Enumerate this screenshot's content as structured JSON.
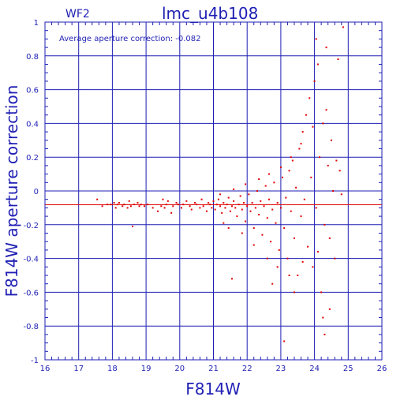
{
  "chart_data": {
    "type": "scatter",
    "title": "lmc_u4b108",
    "subtitle": "WF2",
    "xlabel": "F814W",
    "ylabel": "F814W aperture correction",
    "annotation": "Average aperture correction:  -0.082",
    "reference_line": -0.082,
    "xlim": [
      16,
      26
    ],
    "ylim": [
      -1,
      1
    ],
    "grid": true,
    "x_ticks": [
      16,
      17,
      18,
      19,
      20,
      21,
      22,
      23,
      24,
      25,
      26
    ],
    "x_tick_labels": [
      "16",
      "17",
      "18",
      "19",
      "20",
      "21",
      "22",
      "23",
      "24",
      "25",
      "26"
    ],
    "y_ticks": [
      -1,
      -0.8,
      -0.6,
      -0.4,
      -0.2,
      0,
      0.2,
      0.4,
      0.6,
      0.8,
      1
    ],
    "y_tick_labels": [
      "-1",
      "-0.8",
      "-0.6",
      "-0.4",
      "-0.2",
      "0",
      "0.2",
      "0.4",
      "0.6",
      "0.8",
      "1"
    ],
    "colors": {
      "axes": "#1f1fb4",
      "points": "#e00000",
      "reference_line": "#e00000"
    },
    "series": [
      {
        "values": [
          [
            17.55,
            -0.05
          ],
          [
            17.7,
            -0.09
          ],
          [
            17.85,
            -0.08
          ],
          [
            17.95,
            -0.08
          ],
          [
            18.05,
            -0.07
          ],
          [
            18.1,
            -0.1
          ],
          [
            18.15,
            -0.08
          ],
          [
            18.2,
            -0.07
          ],
          [
            18.3,
            -0.09
          ],
          [
            18.35,
            -0.08
          ],
          [
            18.45,
            -0.1
          ],
          [
            18.5,
            -0.06
          ],
          [
            18.55,
            -0.09
          ],
          [
            18.6,
            -0.21
          ],
          [
            18.65,
            -0.08
          ],
          [
            18.75,
            -0.07
          ],
          [
            18.8,
            -0.09
          ],
          [
            18.85,
            -0.08
          ],
          [
            18.95,
            -0.09
          ],
          [
            19.05,
            -0.08
          ],
          [
            19.2,
            -0.1
          ],
          [
            19.35,
            -0.12
          ],
          [
            19.45,
            -0.09
          ],
          [
            19.5,
            -0.05
          ],
          [
            19.55,
            -0.1
          ],
          [
            19.6,
            -0.08
          ],
          [
            19.65,
            -0.06
          ],
          [
            19.75,
            -0.13
          ],
          [
            19.8,
            -0.09
          ],
          [
            19.9,
            -0.07
          ],
          [
            19.95,
            -0.08
          ],
          [
            20.05,
            -0.1
          ],
          [
            20.1,
            -0.08
          ],
          [
            20.2,
            -0.06
          ],
          [
            20.3,
            -0.09
          ],
          [
            20.35,
            -0.11
          ],
          [
            20.45,
            -0.07
          ],
          [
            20.5,
            -0.08
          ],
          [
            20.6,
            -0.1
          ],
          [
            20.65,
            -0.05
          ],
          [
            20.7,
            -0.09
          ],
          [
            20.8,
            -0.12
          ],
          [
            20.85,
            -0.07
          ],
          [
            20.9,
            -0.08
          ],
          [
            20.95,
            -0.1
          ],
          [
            21.0,
            -0.06
          ],
          [
            21.05,
            -0.11
          ],
          [
            21.1,
            -0.08
          ],
          [
            21.15,
            -0.05
          ],
          [
            21.2,
            -0.09
          ],
          [
            21.25,
            -0.13
          ],
          [
            21.3,
            -0.07
          ],
          [
            21.35,
            -0.1
          ],
          [
            21.4,
            -0.08
          ],
          [
            21.45,
            -0.04
          ],
          [
            21.5,
            -0.12
          ],
          [
            21.55,
            -0.09
          ],
          [
            21.6,
            -0.06
          ],
          [
            21.65,
            -0.1
          ],
          [
            21.7,
            -0.15
          ],
          [
            21.75,
            -0.08
          ],
          [
            21.8,
            -0.03
          ],
          [
            21.85,
            -0.11
          ],
          [
            21.9,
            -0.07
          ],
          [
            21.95,
            -0.18
          ],
          [
            22.0,
            -0.09
          ],
          [
            22.05,
            -0.02
          ],
          [
            22.1,
            -0.12
          ],
          [
            22.15,
            -0.07
          ],
          [
            22.2,
            -0.22
          ],
          [
            22.25,
            -0.1
          ],
          [
            22.3,
            0.0
          ],
          [
            22.35,
            -0.14
          ],
          [
            22.4,
            -0.06
          ],
          [
            22.45,
            -0.26
          ],
          [
            22.5,
            -0.09
          ],
          [
            22.55,
            0.03
          ],
          [
            22.6,
            -0.16
          ],
          [
            22.65,
            -0.05
          ],
          [
            22.7,
            -0.3
          ],
          [
            22.75,
            -0.11
          ],
          [
            22.8,
            0.05
          ],
          [
            22.85,
            -0.19
          ],
          [
            22.9,
            -0.07
          ],
          [
            22.95,
            -0.35
          ],
          [
            23.0,
            -0.1
          ],
          [
            23.05,
            0.08
          ],
          [
            23.1,
            -0.22
          ],
          [
            23.15,
            -0.04
          ],
          [
            23.2,
            -0.4
          ],
          [
            23.25,
            0.12
          ],
          [
            23.3,
            -0.12
          ],
          [
            23.35,
            0.18
          ],
          [
            23.4,
            -0.28
          ],
          [
            23.45,
            0.02
          ],
          [
            23.5,
            -0.5
          ],
          [
            23.55,
            0.25
          ],
          [
            23.6,
            -0.15
          ],
          [
            23.65,
            0.35
          ],
          [
            23.7,
            -0.05
          ],
          [
            23.75,
            0.45
          ],
          [
            23.8,
            -0.33
          ],
          [
            23.85,
            0.55
          ],
          [
            23.9,
            0.08
          ],
          [
            23.95,
            -0.45
          ],
          [
            24.0,
            0.65
          ],
          [
            24.05,
            -0.1
          ],
          [
            24.1,
            0.75
          ],
          [
            24.15,
            0.2
          ],
          [
            24.2,
            -0.6
          ],
          [
            24.25,
            0.4
          ],
          [
            24.3,
            -0.2
          ],
          [
            24.35,
            0.85
          ],
          [
            24.4,
            0.15
          ],
          [
            24.45,
            -0.7
          ],
          [
            24.5,
            0.3
          ],
          [
            24.55,
            0.0
          ],
          [
            24.6,
            -0.4
          ],
          [
            24.65,
            0.18
          ],
          [
            24.7,
            0.78
          ],
          [
            24.75,
            0.12
          ],
          [
            24.8,
            -0.02
          ],
          [
            24.85,
            0.97
          ],
          [
            23.1,
            -0.89
          ],
          [
            24.3,
            -0.85
          ],
          [
            21.55,
            -0.52
          ],
          [
            22.75,
            -0.55
          ],
          [
            23.4,
            -0.6
          ],
          [
            24.25,
            -0.75
          ],
          [
            24.05,
            0.9
          ],
          [
            21.3,
            -0.19
          ],
          [
            21.45,
            -0.22
          ],
          [
            21.85,
            -0.25
          ],
          [
            22.2,
            -0.32
          ],
          [
            22.6,
            -0.4
          ],
          [
            22.9,
            -0.45
          ],
          [
            23.25,
            -0.5
          ],
          [
            23.65,
            -0.42
          ],
          [
            24.1,
            -0.36
          ],
          [
            24.45,
            -0.28
          ],
          [
            21.2,
            -0.02
          ],
          [
            21.6,
            0.01
          ],
          [
            21.95,
            0.04
          ],
          [
            22.35,
            0.07
          ],
          [
            22.65,
            0.1
          ],
          [
            23.0,
            0.14
          ],
          [
            23.3,
            0.2
          ],
          [
            23.6,
            0.28
          ],
          [
            23.95,
            0.38
          ],
          [
            24.35,
            0.48
          ]
        ]
      }
    ]
  }
}
